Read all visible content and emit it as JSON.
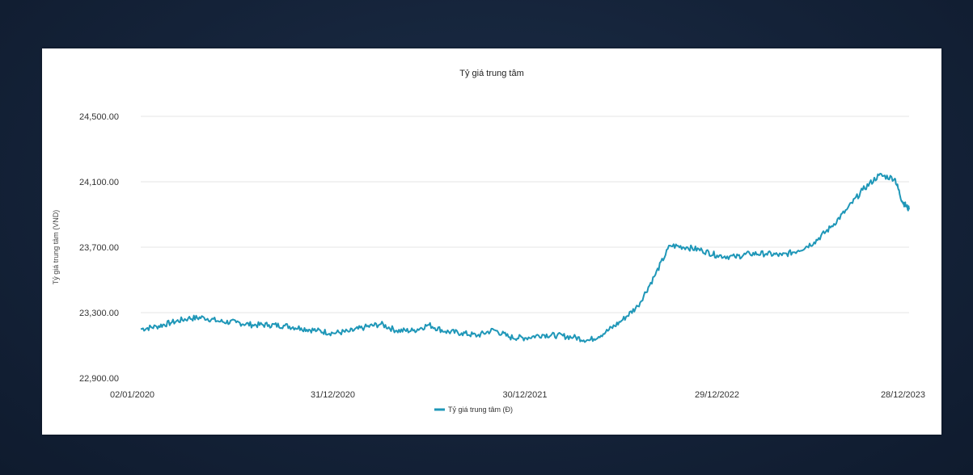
{
  "chart_data": {
    "type": "line",
    "title": "Tỷ giá trung tâm",
    "ylabel": "Tỷ giá trung tâm (VND)",
    "xlabel": "",
    "ylim": [
      22900,
      24500
    ],
    "y_ticks": [
      "24,500.00",
      "24,100.00",
      "23,700.00",
      "23,300.00",
      "22,900.00"
    ],
    "y_tick_values": [
      24500,
      24100,
      23700,
      23300,
      22900
    ],
    "x_ticks": [
      "02/01/2020",
      "31/12/2020",
      "30/12/2021",
      "29/12/2022",
      "28/12/2023"
    ],
    "x_range": [
      "02/01/2020",
      "28/12/2023"
    ],
    "grid": "horizontal",
    "legend_position": "bottom",
    "color": "#1f97b8",
    "series": [
      {
        "name": "Tỷ giá trung tâm (Đ)",
        "points": [
          [
            "02/01/2020",
            23200
          ],
          [
            "01/02/2020",
            23215
          ],
          [
            "01/03/2020",
            23240
          ],
          [
            "01/04/2020",
            23265
          ],
          [
            "01/05/2020",
            23270
          ],
          [
            "01/06/2020",
            23245
          ],
          [
            "01/07/2020",
            23240
          ],
          [
            "01/08/2020",
            23225
          ],
          [
            "01/09/2020",
            23225
          ],
          [
            "01/10/2020",
            23220
          ],
          [
            "01/11/2020",
            23205
          ],
          [
            "01/12/2020",
            23190
          ],
          [
            "31/12/2020",
            23175
          ],
          [
            "01/02/2021",
            23185
          ],
          [
            "01/03/2021",
            23210
          ],
          [
            "01/04/2021",
            23230
          ],
          [
            "01/05/2021",
            23190
          ],
          [
            "01/06/2021",
            23190
          ],
          [
            "01/07/2021",
            23225
          ],
          [
            "01/08/2021",
            23185
          ],
          [
            "01/09/2021",
            23175
          ],
          [
            "01/10/2021",
            23160
          ],
          [
            "01/11/2021",
            23195
          ],
          [
            "01/12/2021",
            23150
          ],
          [
            "30/12/2021",
            23145
          ],
          [
            "01/02/2022",
            23165
          ],
          [
            "01/03/2022",
            23160
          ],
          [
            "01/04/2022",
            23150
          ],
          [
            "01/05/2022",
            23130
          ],
          [
            "01/06/2022",
            23180
          ],
          [
            "01/07/2022",
            23250
          ],
          [
            "01/08/2022",
            23340
          ],
          [
            "01/09/2022",
            23520
          ],
          [
            "01/10/2022",
            23710
          ],
          [
            "01/11/2022",
            23700
          ],
          [
            "01/12/2022",
            23680
          ],
          [
            "29/12/2022",
            23650
          ],
          [
            "01/02/2023",
            23640
          ],
          [
            "01/03/2023",
            23660
          ],
          [
            "01/04/2023",
            23660
          ],
          [
            "01/05/2023",
            23650
          ],
          [
            "01/06/2023",
            23680
          ],
          [
            "01/07/2023",
            23730
          ],
          [
            "01/08/2023",
            23820
          ],
          [
            "01/09/2023",
            23930
          ],
          [
            "01/10/2023",
            24050
          ],
          [
            "01/11/2023",
            24140
          ],
          [
            "01/12/2023",
            24120
          ],
          [
            "15/12/2023",
            23980
          ],
          [
            "28/12/2023",
            23930
          ]
        ]
      }
    ]
  }
}
